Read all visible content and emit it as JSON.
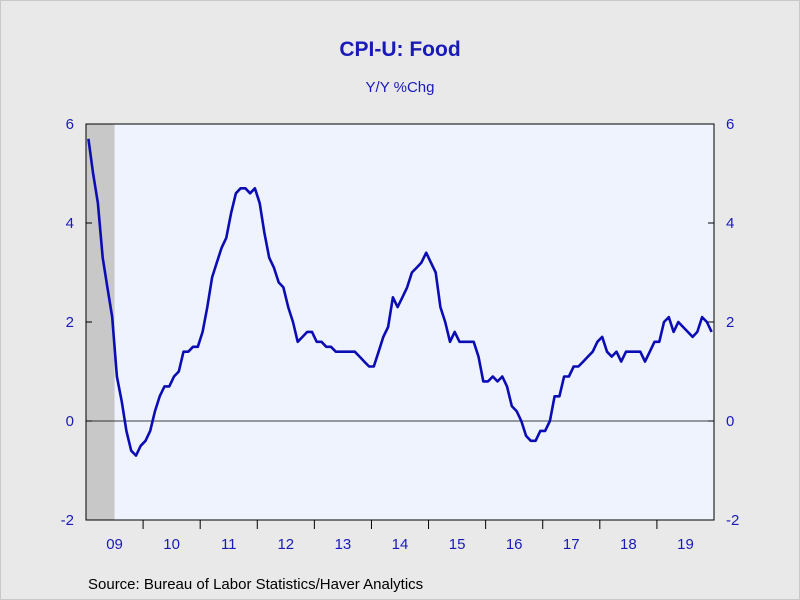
{
  "chart_data": {
    "type": "line",
    "title": "CPI-U: Food",
    "subtitle": "Y/Y %Chg",
    "source": "Source:  Bureau of Labor Statistics/Haver Analytics",
    "xlabel": "",
    "ylabel": "",
    "ylim": [
      -2,
      6
    ],
    "y_ticks": [
      -2,
      0,
      2,
      4,
      6
    ],
    "x_tick_labels": [
      "09",
      "10",
      "11",
      "12",
      "13",
      "14",
      "15",
      "16",
      "17",
      "18",
      "19"
    ],
    "x_range_months": [
      "2009-01",
      "2019-12"
    ],
    "recession_shading": {
      "start": "2009-01",
      "end": "2009-06"
    },
    "grid": false,
    "zero_line": true,
    "colors": {
      "line": "#0c0cb4",
      "axis_text": "#1a1ab8",
      "plot_bg": "#eef3fd",
      "recession": "#c8c8c8",
      "page_bg": "#e9e9ea"
    },
    "series": [
      {
        "start": "2009-01",
        "values": [
          5.7,
          5.0,
          4.4,
          3.3,
          2.7,
          2.1,
          0.9,
          0.4,
          -0.2,
          -0.6,
          -0.7,
          -0.5,
          -0.4,
          -0.2,
          0.2,
          0.5,
          0.7,
          0.7,
          0.9,
          1.0,
          1.4,
          1.4,
          1.5,
          1.5,
          1.8,
          2.3,
          2.9,
          3.2,
          3.5,
          3.7,
          4.2,
          4.6,
          4.7,
          4.7,
          4.6,
          4.7,
          4.4,
          3.8,
          3.3,
          3.1,
          2.8,
          2.7,
          2.3,
          2.0,
          1.6,
          1.7,
          1.8,
          1.8,
          1.6,
          1.6,
          1.5,
          1.5,
          1.4,
          1.4,
          1.4,
          1.4,
          1.4,
          1.3,
          1.2,
          1.1,
          1.1,
          1.4,
          1.7,
          1.9,
          2.5,
          2.3,
          2.5,
          2.7,
          3.0,
          3.1,
          3.2,
          3.4,
          3.2,
          3.0,
          2.3,
          2.0,
          1.6,
          1.8,
          1.6,
          1.6,
          1.6,
          1.6,
          1.3,
          0.8,
          0.8,
          0.9,
          0.8,
          0.9,
          0.7,
          0.3,
          0.2,
          0.0,
          -0.3,
          -0.4,
          -0.4,
          -0.2,
          -0.2,
          0.0,
          0.5,
          0.5,
          0.9,
          0.9,
          1.1,
          1.1,
          1.2,
          1.3,
          1.4,
          1.6,
          1.7,
          1.4,
          1.3,
          1.4,
          1.2,
          1.4,
          1.4,
          1.4,
          1.4,
          1.2,
          1.4,
          1.6,
          1.6,
          2.0,
          2.1,
          1.8,
          2.0,
          1.9,
          1.8,
          1.7,
          1.8,
          2.1,
          2.0,
          1.8
        ]
      }
    ]
  }
}
